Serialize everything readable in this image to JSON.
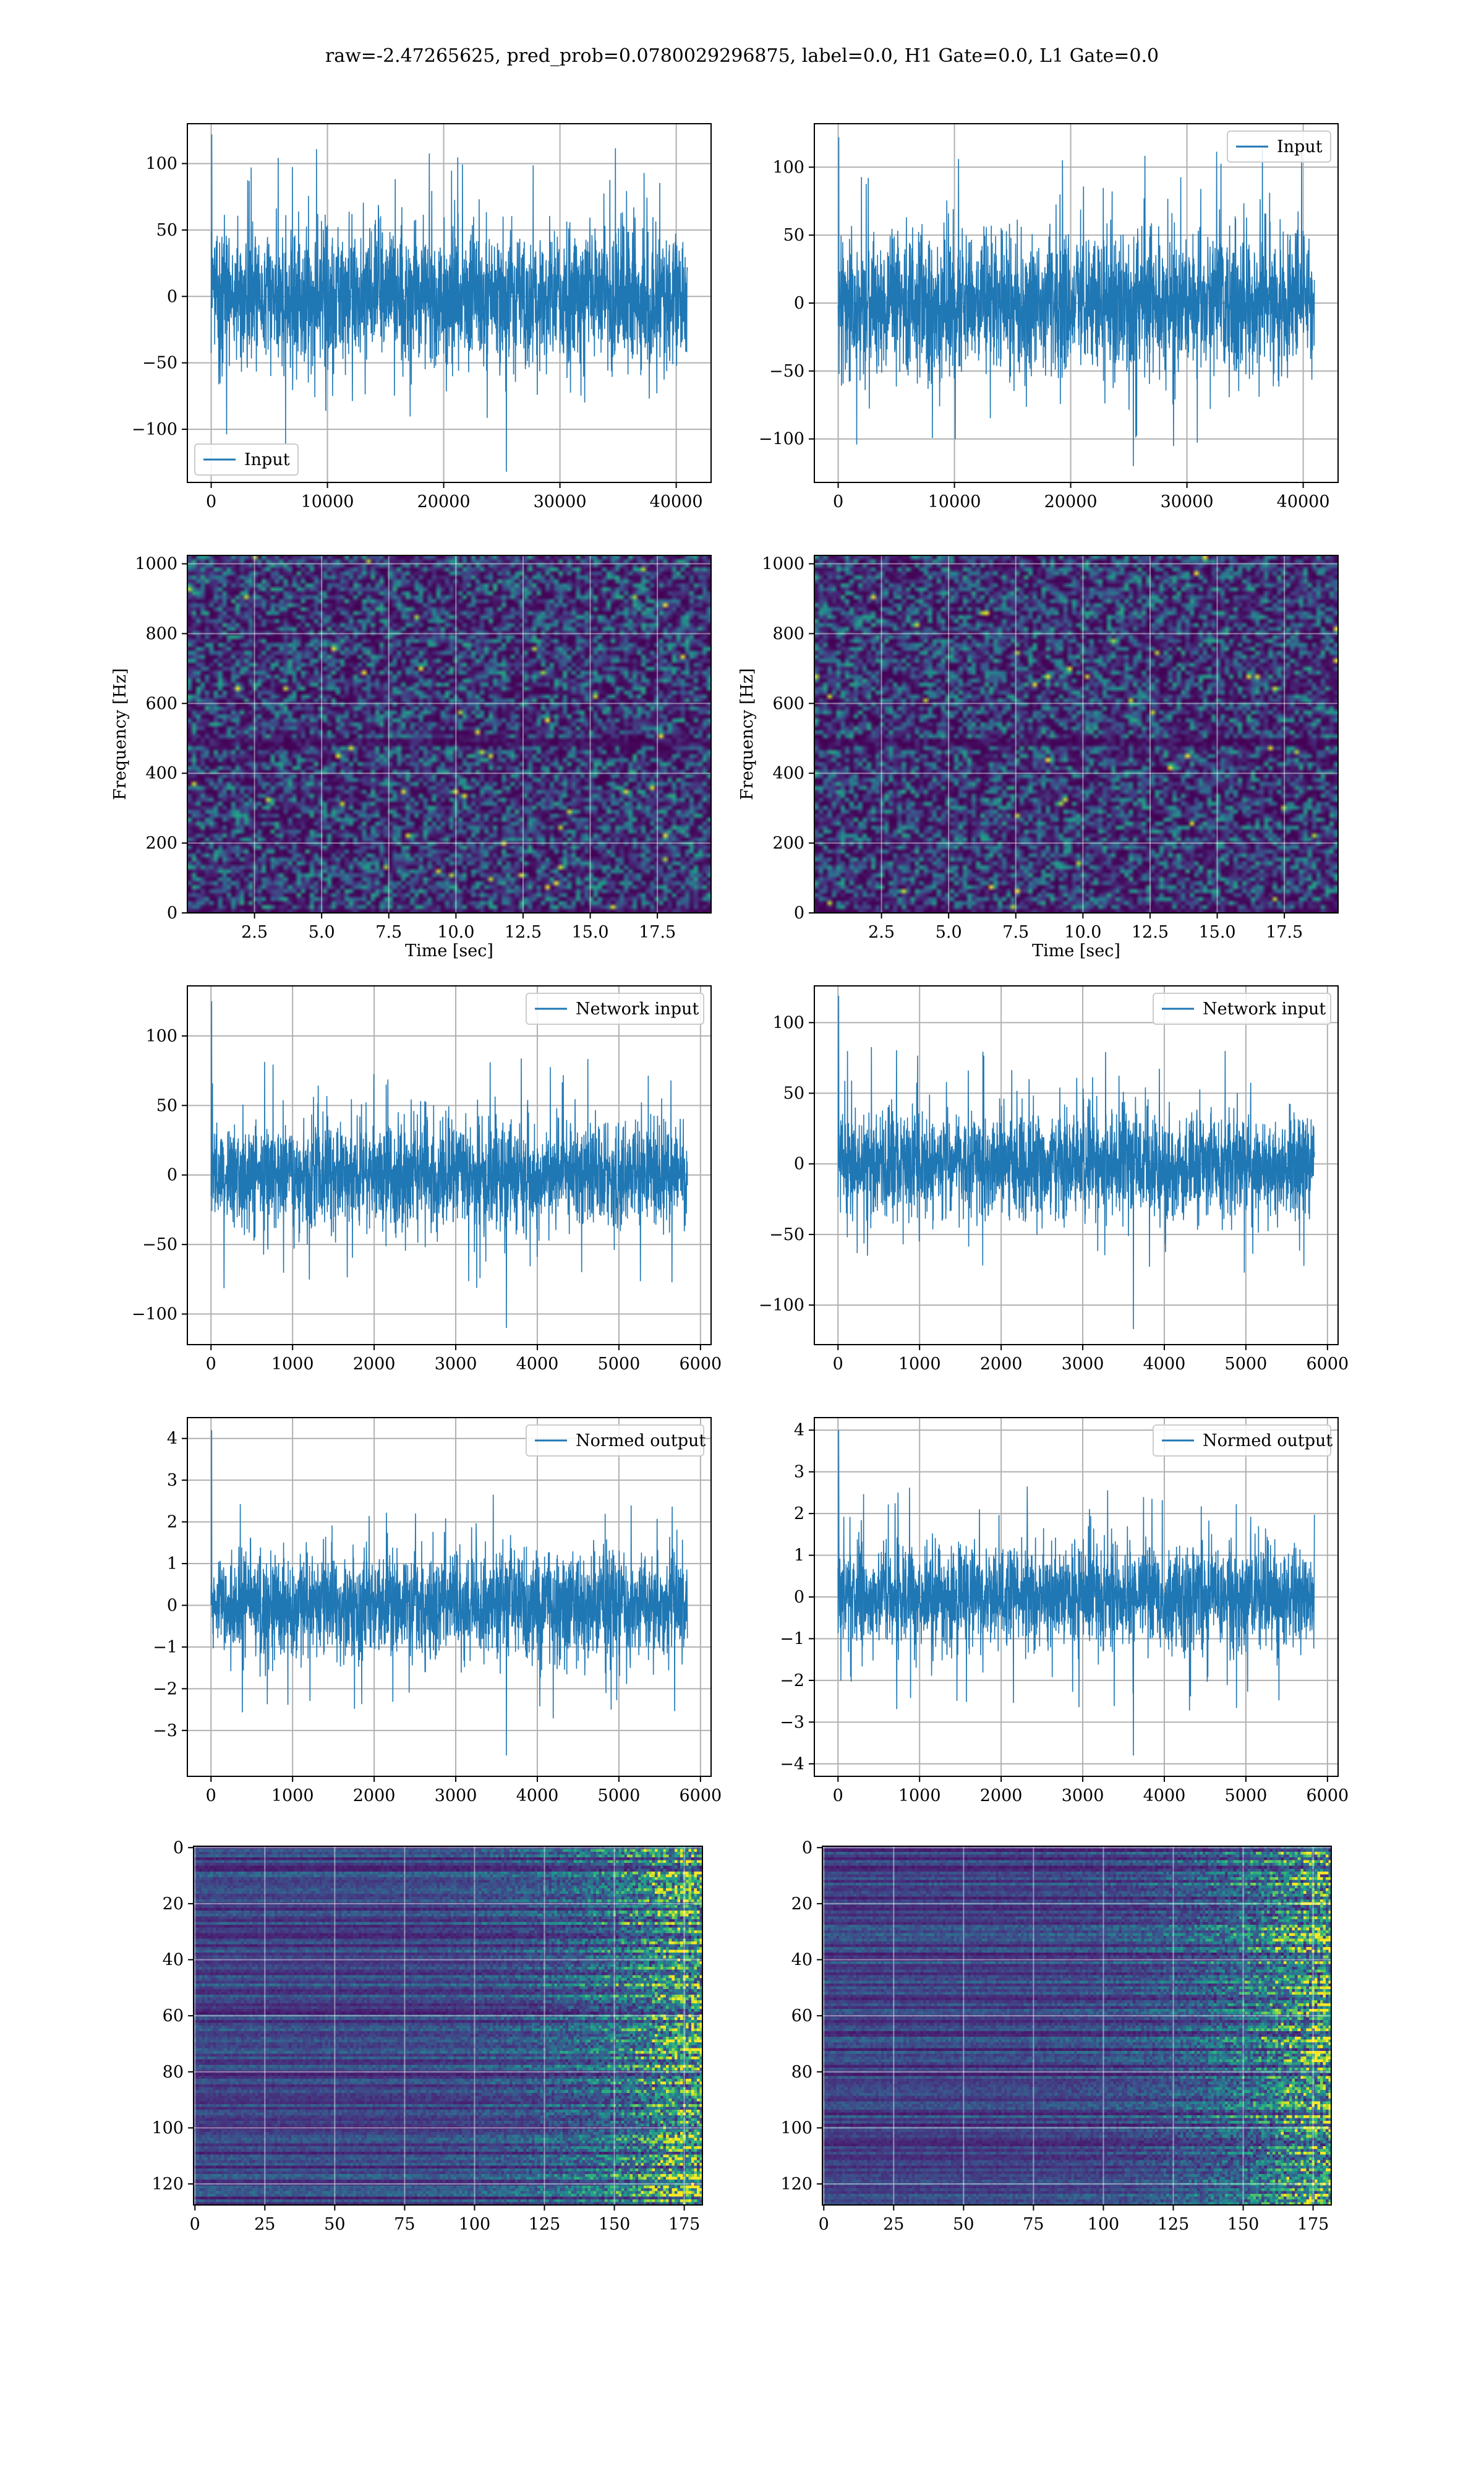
{
  "figure": {
    "suptitle": "raw=-2.47265625, pred_prob=0.0780029296875, label=0.0, H1 Gate=0.0, L1 Gate=0.0",
    "accent": "#1f77b4"
  },
  "chart_data": [
    {
      "id": "row1-left",
      "type": "line",
      "xlim": [
        -2050,
        43000
      ],
      "ylim": [
        -140,
        130
      ],
      "xticks": [
        0,
        10000,
        20000,
        30000,
        40000
      ],
      "xtick_labels": [
        "0",
        "10000",
        "20000",
        "30000",
        "40000"
      ],
      "yticks": [
        -100,
        -50,
        0,
        50,
        100
      ],
      "ytick_labels": [
        "−100",
        "−50",
        "0",
        "50",
        "100"
      ],
      "grid": true,
      "legend_loc": "lower-left",
      "signal": {
        "x_start": 0,
        "x_end": 40960,
        "envelope_low": -55,
        "envelope_high": 55,
        "peak_max": 122,
        "peak_min": -132
      },
      "series": [
        {
          "name": "Input",
          "color": "#1f77b4"
        }
      ]
    },
    {
      "id": "row1-right",
      "type": "line",
      "xlim": [
        -2050,
        43000
      ],
      "ylim": [
        -132,
        132
      ],
      "xticks": [
        0,
        10000,
        20000,
        30000,
        40000
      ],
      "xtick_labels": [
        "0",
        "10000",
        "20000",
        "30000",
        "40000"
      ],
      "yticks": [
        -100,
        -50,
        0,
        50,
        100
      ],
      "ytick_labels": [
        "−100",
        "−50",
        "0",
        "50",
        "100"
      ],
      "grid": true,
      "legend_loc": "upper-right",
      "signal": {
        "x_start": 0,
        "x_end": 40960,
        "envelope_low": -55,
        "envelope_high": 55,
        "peak_max": 122,
        "peak_min": -120
      },
      "series": [
        {
          "name": "Input",
          "color": "#1f77b4"
        }
      ]
    },
    {
      "id": "row2-left",
      "type": "heatmap",
      "xlim": [
        0,
        19.5
      ],
      "ylim": [
        0,
        1024
      ],
      "xticks": [
        2.5,
        5.0,
        7.5,
        10.0,
        12.5,
        15.0,
        17.5
      ],
      "xtick_labels": [
        "2.5",
        "5.0",
        "7.5",
        "10.0",
        "12.5",
        "15.0",
        "17.5"
      ],
      "yticks": [
        0,
        200,
        400,
        600,
        800,
        1000
      ],
      "ytick_labels": [
        "0",
        "200",
        "400",
        "600",
        "800",
        "1000"
      ],
      "xlabel": "Time [sec]",
      "ylabel": "Frequency [Hz]",
      "grid": true,
      "colormap": "viridis",
      "dark_band_hz": 500,
      "seed": 11
    },
    {
      "id": "row2-right",
      "type": "heatmap",
      "xlim": [
        0,
        19.5
      ],
      "ylim": [
        0,
        1024
      ],
      "xticks": [
        2.5,
        5.0,
        7.5,
        10.0,
        12.5,
        15.0,
        17.5
      ],
      "xtick_labels": [
        "2.5",
        "5.0",
        "7.5",
        "10.0",
        "12.5",
        "15.0",
        "17.5"
      ],
      "yticks": [
        0,
        200,
        400,
        600,
        800,
        1000
      ],
      "ytick_labels": [
        "0",
        "200",
        "400",
        "600",
        "800",
        "1000"
      ],
      "xlabel": "Time [sec]",
      "ylabel": "Frequency [Hz]",
      "grid": true,
      "colormap": "viridis",
      "dark_band_hz": 500,
      "seed": 29
    },
    {
      "id": "row3-left",
      "type": "line",
      "xlim": [
        -290,
        6130
      ],
      "ylim": [
        -122,
        136
      ],
      "xticks": [
        0,
        1000,
        2000,
        3000,
        4000,
        5000,
        6000
      ],
      "xtick_labels": [
        "0",
        "1000",
        "2000",
        "3000",
        "4000",
        "5000",
        "6000"
      ],
      "yticks": [
        -100,
        -50,
        0,
        50,
        100
      ],
      "ytick_labels": [
        "−100",
        "−50",
        "0",
        "50",
        "100"
      ],
      "grid": true,
      "legend_loc": "upper-right",
      "signal": {
        "x_start": 0,
        "x_end": 5840,
        "envelope_low": -40,
        "envelope_high": 40,
        "peak_max": 125,
        "peak_min": -110
      },
      "series": [
        {
          "name": "Network input",
          "color": "#1f77b4"
        }
      ]
    },
    {
      "id": "row3-right",
      "type": "line",
      "xlim": [
        -290,
        6130
      ],
      "ylim": [
        -128,
        126
      ],
      "xticks": [
        0,
        1000,
        2000,
        3000,
        4000,
        5000,
        6000
      ],
      "xtick_labels": [
        "0",
        "1000",
        "2000",
        "3000",
        "4000",
        "5000",
        "6000"
      ],
      "yticks": [
        -100,
        -50,
        0,
        50,
        100
      ],
      "ytick_labels": [
        "−100",
        "−50",
        "0",
        "50",
        "100"
      ],
      "grid": true,
      "legend_loc": "upper-right",
      "signal": {
        "x_start": 0,
        "x_end": 5840,
        "envelope_low": -40,
        "envelope_high": 40,
        "peak_max": 119,
        "peak_min": -117
      },
      "series": [
        {
          "name": "Network input",
          "color": "#1f77b4"
        }
      ]
    },
    {
      "id": "row4-left",
      "type": "line",
      "xlim": [
        -290,
        6130
      ],
      "ylim": [
        -4.1,
        4.5
      ],
      "xticks": [
        0,
        1000,
        2000,
        3000,
        4000,
        5000,
        6000
      ],
      "xtick_labels": [
        "0",
        "1000",
        "2000",
        "3000",
        "4000",
        "5000",
        "6000"
      ],
      "yticks": [
        -3,
        -2,
        -1,
        0,
        1,
        2,
        3,
        4
      ],
      "ytick_labels": [
        "−3",
        "−2",
        "−1",
        "0",
        "1",
        "2",
        "3",
        "4"
      ],
      "grid": true,
      "legend_loc": "upper-right",
      "signal": {
        "x_start": 0,
        "x_end": 5840,
        "envelope_low": -1.3,
        "envelope_high": 1.3,
        "peak_max": 4.2,
        "peak_min": -3.6
      },
      "series": [
        {
          "name": "Normed output",
          "color": "#1f77b4"
        }
      ]
    },
    {
      "id": "row4-right",
      "type": "line",
      "xlim": [
        -290,
        6130
      ],
      "ylim": [
        -4.3,
        4.3
      ],
      "xticks": [
        0,
        1000,
        2000,
        3000,
        4000,
        5000,
        6000
      ],
      "xtick_labels": [
        "0",
        "1000",
        "2000",
        "3000",
        "4000",
        "5000",
        "6000"
      ],
      "yticks": [
        -4,
        -3,
        -2,
        -1,
        0,
        1,
        2,
        3,
        4
      ],
      "ytick_labels": [
        "−4",
        "−3",
        "−2",
        "−1",
        "0",
        "1",
        "2",
        "3",
        "4"
      ],
      "grid": true,
      "legend_loc": "upper-right",
      "signal": {
        "x_start": 0,
        "x_end": 5840,
        "envelope_low": -1.3,
        "envelope_high": 1.3,
        "peak_max": 4.0,
        "peak_min": -3.8
      },
      "series": [
        {
          "name": "Normed output",
          "color": "#1f77b4"
        }
      ]
    },
    {
      "id": "row5-left",
      "type": "heatmap",
      "xlim": [
        -0.5,
        181.5
      ],
      "ylim": [
        127.5,
        -0.5
      ],
      "y_inverted": true,
      "xticks": [
        0,
        25,
        50,
        75,
        100,
        125,
        150,
        175
      ],
      "xtick_labels": [
        "0",
        "25",
        "50",
        "75",
        "100",
        "125",
        "150",
        "175"
      ],
      "yticks": [
        0,
        20,
        40,
        60,
        80,
        100,
        120
      ],
      "ytick_labels": [
        "0",
        "20",
        "40",
        "60",
        "80",
        "100",
        "120"
      ],
      "grid": true,
      "colormap": "viridis",
      "rows": 128,
      "cols": 182,
      "seed": 7
    },
    {
      "id": "row5-right",
      "type": "heatmap",
      "xlim": [
        -0.5,
        181.5
      ],
      "ylim": [
        127.5,
        -0.5
      ],
      "y_inverted": true,
      "xticks": [
        0,
        25,
        50,
        75,
        100,
        125,
        150,
        175
      ],
      "xtick_labels": [
        "0",
        "25",
        "50",
        "75",
        "100",
        "125",
        "150",
        "175"
      ],
      "yticks": [
        0,
        20,
        40,
        60,
        80,
        100,
        120
      ],
      "ytick_labels": [
        "0",
        "20",
        "40",
        "60",
        "80",
        "100",
        "120"
      ],
      "grid": true,
      "colormap": "viridis",
      "rows": 128,
      "cols": 182,
      "seed": 19
    }
  ]
}
